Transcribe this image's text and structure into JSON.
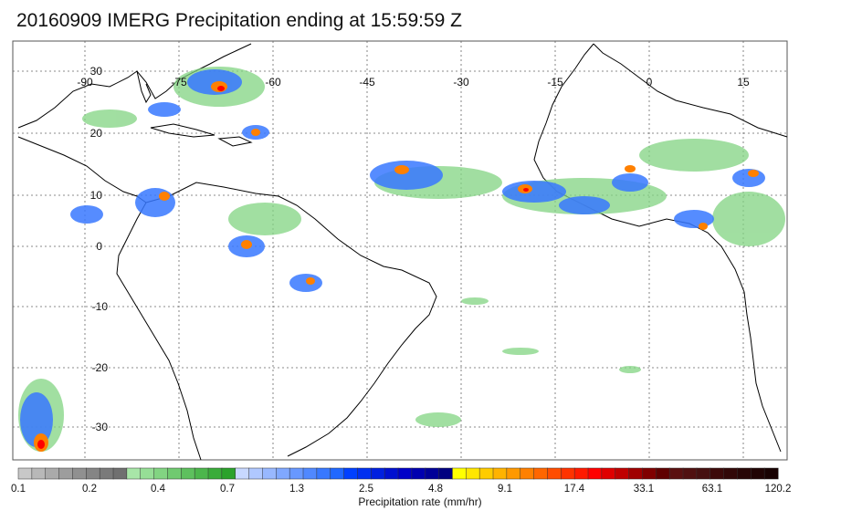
{
  "title": "20160909 IMERG Precipitation ending at 15:59:59 Z",
  "map": {
    "lon_labels": [
      "-90",
      "-75",
      "-60",
      "-45",
      "-30",
      "-15",
      "0",
      "15"
    ],
    "lat_labels": [
      "30",
      "20",
      "10",
      "0",
      "-10",
      "-20",
      "-30"
    ]
  },
  "colorbar": {
    "title": "Precipitation rate (mm/hr)",
    "tick_labels": [
      "0.1",
      "0.2",
      "0.4",
      "0.7",
      "1.3",
      "2.5",
      "4.8",
      "9.1",
      "17.4",
      "33.1",
      "63.1",
      "120.2"
    ],
    "colors": [
      "#c8c8c8",
      "#b8b8b8",
      "#aaaaaa",
      "#9d9d9d",
      "#909090",
      "#858585",
      "#7a7a7a",
      "#707070",
      "#a8e6a8",
      "#96de96",
      "#82d482",
      "#70ca70",
      "#5ec05e",
      "#4cb64c",
      "#3aac3a",
      "#2ba22b",
      "#c8d8ff",
      "#b0c8ff",
      "#98b8ff",
      "#80a8ff",
      "#6898ff",
      "#5088ff",
      "#3878ff",
      "#2068ff",
      "#0040ff",
      "#0030f0",
      "#0020e0",
      "#0010d0",
      "#0000c8",
      "#0000b0",
      "#000098",
      "#000080",
      "#ffff00",
      "#ffe600",
      "#ffcc00",
      "#ffb300",
      "#ff9900",
      "#ff8000",
      "#ff6600",
      "#ff4d00",
      "#ff3300",
      "#ff1a00",
      "#ff0000",
      "#e00000",
      "#c00000",
      "#a00000",
      "#800000",
      "#600000",
      "#5a1010",
      "#501010",
      "#461010",
      "#3c0a0a",
      "#320808",
      "#280606",
      "#200404",
      "#180202"
    ]
  }
}
